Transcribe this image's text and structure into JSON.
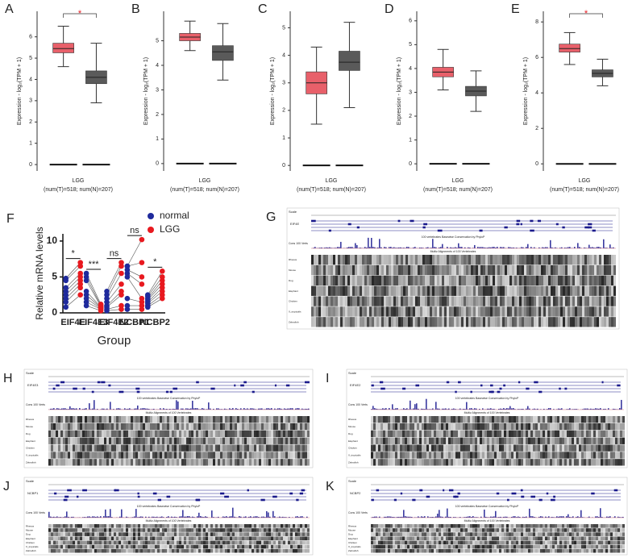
{
  "chart_data": [
    {
      "type": "box",
      "label": "A",
      "ylabel": "Expression - log₂(TPM + 1)",
      "xlabel": "LGG",
      "subtitle": "(num(T)=518; num(N)=207)",
      "ylim": [
        -0.3,
        7.2
      ],
      "yticks": [
        0,
        1,
        2,
        3,
        4,
        5,
        6
      ],
      "significance": "*",
      "series": [
        {
          "color": "#e8606a",
          "box": {
            "min": 4.6,
            "q1": 5.25,
            "median": 5.45,
            "q3": 5.7,
            "max": 6.5
          }
        },
        {
          "color": "#5a5a5a",
          "box": {
            "min": 2.9,
            "q1": 3.8,
            "median": 4.1,
            "q3": 4.4,
            "max": 5.7
          }
        }
      ]
    },
    {
      "type": "box",
      "label": "B",
      "ylabel": "Expression - log₂(TPM + 1)",
      "xlabel": "LGG",
      "subtitle": "(num(T)=518; num(N)=207)",
      "ylim": [
        -0.3,
        6.2
      ],
      "yticks": [
        0,
        1,
        2,
        3,
        4,
        5
      ],
      "series": [
        {
          "color": "#e8606a",
          "box": {
            "min": 4.6,
            "q1": 5.0,
            "median": 5.15,
            "q3": 5.3,
            "max": 5.8
          }
        },
        {
          "color": "#5a5a5a",
          "box": {
            "min": 3.4,
            "q1": 4.2,
            "median": 4.55,
            "q3": 4.8,
            "max": 5.7
          }
        }
      ]
    },
    {
      "type": "box",
      "label": "C",
      "ylabel": "Expression - log₂(TPM + 1)",
      "xlabel": "LGG",
      "subtitle": "(num(T)=518; num(N)=207)",
      "ylim": [
        -0.2,
        5.6
      ],
      "yticks": [
        0,
        1,
        2,
        3,
        4,
        5
      ],
      "series": [
        {
          "color": "#e8606a",
          "box": {
            "min": 1.5,
            "q1": 2.6,
            "median": 3.0,
            "q3": 3.4,
            "max": 4.3
          }
        },
        {
          "color": "#5a5a5a",
          "box": {
            "min": 2.1,
            "q1": 3.45,
            "median": 3.75,
            "q3": 4.15,
            "max": 5.2
          }
        }
      ]
    },
    {
      "type": "box",
      "label": "D",
      "ylabel": "Expression - log₂(TPM + 1)",
      "xlabel": "LGG",
      "subtitle": "(num(T)=518; num(N)=207)",
      "ylim": [
        -0.3,
        6.4
      ],
      "yticks": [
        0,
        1,
        2,
        3,
        4,
        5,
        6
      ],
      "series": [
        {
          "color": "#e8606a",
          "box": {
            "min": 3.1,
            "q1": 3.65,
            "median": 3.85,
            "q3": 4.05,
            "max": 4.8
          }
        },
        {
          "color": "#5a5a5a",
          "box": {
            "min": 2.2,
            "q1": 2.85,
            "median": 3.05,
            "q3": 3.25,
            "max": 3.9
          }
        }
      ]
    },
    {
      "type": "box",
      "label": "E",
      "ylabel": "Expression - log₂(TPM + 1)",
      "xlabel": "LGG",
      "subtitle": "(num(T)=518; num(N)=207)",
      "ylim": [
        -0.4,
        8.6
      ],
      "yticks": [
        0,
        2,
        4,
        6,
        8
      ],
      "significance": "*",
      "series": [
        {
          "color": "#e8606a",
          "box": {
            "min": 5.6,
            "q1": 6.3,
            "median": 6.5,
            "q3": 6.75,
            "max": 7.4
          }
        },
        {
          "color": "#5a5a5a",
          "box": {
            "min": 4.4,
            "q1": 4.9,
            "median": 5.1,
            "q3": 5.3,
            "max": 5.9
          }
        }
      ]
    },
    {
      "type": "paired",
      "label": "F",
      "ylabel": "Relative mRNA levels",
      "xlabel": "Group",
      "ylim": [
        0,
        11
      ],
      "yticks": [
        0,
        5,
        10
      ],
      "categories": [
        "EIF4E",
        "EIF4E3",
        "EIF4E2",
        "NCBP1",
        "NCBP2"
      ],
      "significance": [
        "*",
        "***",
        "ns",
        "ns",
        "*"
      ],
      "series": [
        {
          "name": "normal",
          "color": "#1f2a9c",
          "values": [
            [
              0.8,
              1.5,
              2.0,
              2.5,
              3.0,
              3.5,
              4.5,
              4.8
            ],
            [
              1.0,
              1.5,
              2.0,
              2.5,
              3.0,
              4.5,
              5.0,
              5.5
            ],
            [
              0.3,
              0.5,
              0.8,
              1.0,
              1.5,
              2.0,
              2.5,
              3.0
            ],
            [
              0.5,
              1.0,
              2.0,
              5.0,
              5.5,
              6.0,
              6.5,
              6.5
            ],
            [
              0.8,
              1.0,
              1.3,
              1.5,
              1.8,
              2.0,
              2.3,
              2.5
            ]
          ]
        },
        {
          "name": "LGG",
          "color": "#e8191f",
          "values": [
            [
              2.5,
              3.5,
              4.0,
              4.5,
              5.0,
              5.5,
              6.5,
              7.0
            ],
            [
              0.3,
              0.5,
              0.6,
              0.7,
              0.8,
              0.9,
              1.0,
              1.2
            ],
            [
              0.5,
              1.0,
              2.5,
              3.0,
              4.0,
              5.5,
              6.5,
              7.0
            ],
            [
              0.5,
              1.0,
              1.5,
              2.0,
              4.0,
              5.0,
              7.0,
              10.2
            ],
            [
              2.0,
              2.5,
              3.0,
              3.5,
              4.0,
              4.5,
              5.0,
              5.8
            ]
          ]
        }
      ]
    }
  ],
  "genome_panels": [
    {
      "label": "G",
      "scale": "Scale",
      "gene": "EIF4E",
      "conservation": "Cons 100 Verts",
      "phylop": "100 vertebrates Basewise Conservation by PhyloP",
      "multiz": "Multiz Alignments of 100 Vertebrates"
    },
    {
      "label": "H",
      "scale": "Scale",
      "gene": "EIF4E3",
      "conservation": "Cons 100 Verts",
      "phylop": "100 vertebrates Basewise Conservation by PhyloP",
      "multiz": "Multiz Alignments of 100 Vertebrates"
    },
    {
      "label": "I",
      "scale": "Scale",
      "gene": "EIF4E2",
      "conservation": "Cons 100 Verts",
      "phylop": "100 vertebrates Basewise Conservation by PhyloP",
      "multiz": "Multiz Alignments of 100 Vertebrates"
    },
    {
      "label": "J",
      "scale": "Scale",
      "gene": "NCBP1",
      "conservation": "Cons 100 Verts",
      "phylop": "100 vertebrates Basewise Conservation by PhyloP",
      "multiz": "Multiz Alignments of 100 Vertebrates"
    },
    {
      "label": "K",
      "scale": "Scale",
      "gene": "NCBP2",
      "conservation": "Cons 100 Verts",
      "phylop": "100 vertebrates Basewise Conservation by PhyloP",
      "multiz": "Multiz Alignments of 100 Vertebrates"
    }
  ],
  "species": [
    "Rhesus",
    "Mouse",
    "Dog",
    "Elephant",
    "Chicken",
    "X_tropicalis",
    "Zebrafish"
  ]
}
